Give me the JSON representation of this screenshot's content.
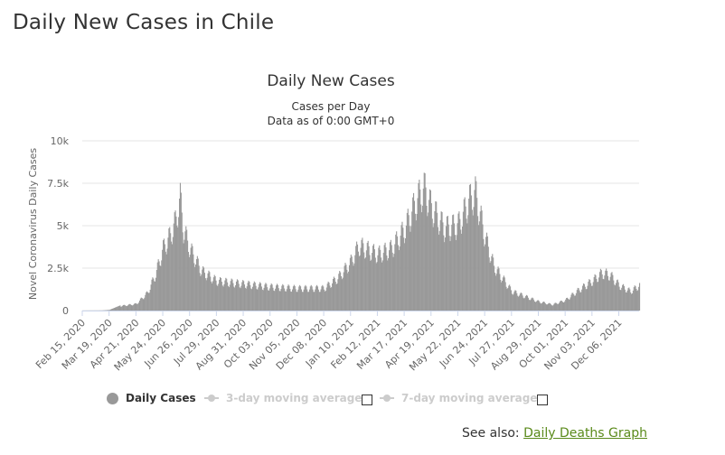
{
  "page": {
    "title": "Daily New Cases in Chile",
    "see_also_prefix": "See also:",
    "see_also_link": "Daily Deaths Graph"
  },
  "legend": {
    "items": [
      {
        "label": "Daily Cases",
        "active": true,
        "symbol": "circle"
      },
      {
        "label": "3-day moving average",
        "active": false,
        "symbol": "line-marker",
        "checkbox": "unchecked"
      },
      {
        "label": "7-day moving average",
        "active": false,
        "symbol": "line-marker",
        "checkbox": "unchecked"
      }
    ]
  },
  "chart_data": {
    "type": "bar",
    "title": "Daily New Cases",
    "subtitle": "Cases per Day",
    "subtitle2": "Data as of 0:00 GMT+0",
    "ylabel": "Novel Coronavirus Daily Cases",
    "xlabel": "",
    "ylim": [
      0,
      10000
    ],
    "y_ticks": [
      {
        "value": 0,
        "label": "0"
      },
      {
        "value": 2500,
        "label": "2.5k"
      },
      {
        "value": 5000,
        "label": "5k"
      },
      {
        "value": 7500,
        "label": "7.5k"
      },
      {
        "value": 10000,
        "label": "10k"
      }
    ],
    "x_ticks": [
      "Feb 15, 2020",
      "Mar 19, 2020",
      "Apr 21, 2020",
      "May 24, 2020",
      "Jun 26, 2020",
      "Jul 29, 2020",
      "Aug 31, 2020",
      "Oct 03, 2020",
      "Nov 05, 2020",
      "Dec 08, 2020",
      "Jan 10, 2021",
      "Feb 12, 2021",
      "Mar 17, 2021",
      "Apr 19, 2021",
      "May 22, 2021",
      "Jun 24, 2021",
      "Jul 27, 2021",
      "Aug 29, 2021",
      "Oct 01, 2021",
      "Nov 03, 2021",
      "Dec 06, 2021"
    ],
    "tick_interval_days": 33,
    "date_range": [
      "2020-02-15",
      "2021-12-31"
    ],
    "bar_color": "#999999",
    "grid": true,
    "legend_position": "bottom",
    "daily_values_approx": {
      "2020-02-15": 0,
      "2020-03-10": 5,
      "2020-03-19": 40,
      "2020-04-01": 300,
      "2020-04-21": 450,
      "2020-05-05": 1200,
      "2020-05-15": 2500,
      "2020-05-24": 4200,
      "2020-06-01": 5000,
      "2020-06-08": 6000,
      "2020-06-14": 7600,
      "2020-06-18": 5500,
      "2020-06-26": 4200,
      "2020-07-10": 2700,
      "2020-07-29": 2000,
      "2020-08-31": 1800,
      "2020-10-03": 1600,
      "2020-11-05": 1500,
      "2020-12-08": 1500,
      "2020-12-25": 2200,
      "2021-01-10": 3300,
      "2021-01-20": 4400,
      "2021-02-12": 3800,
      "2021-03-01": 4200,
      "2021-03-17": 5500,
      "2021-04-01": 7500,
      "2021-04-10": 8300,
      "2021-04-19": 7000,
      "2021-05-05": 5600,
      "2021-05-22": 5800,
      "2021-06-05": 7500,
      "2021-06-12": 8000,
      "2021-06-24": 5000,
      "2021-07-05": 3000,
      "2021-07-27": 1300,
      "2021-08-29": 600,
      "2021-09-15": 400,
      "2021-10-01": 700,
      "2021-10-15": 1300,
      "2021-11-03": 2000,
      "2021-11-15": 2550,
      "2021-11-25": 2400,
      "2021-12-06": 1700,
      "2021-12-20": 1300,
      "2021-12-31": 1700
    }
  }
}
